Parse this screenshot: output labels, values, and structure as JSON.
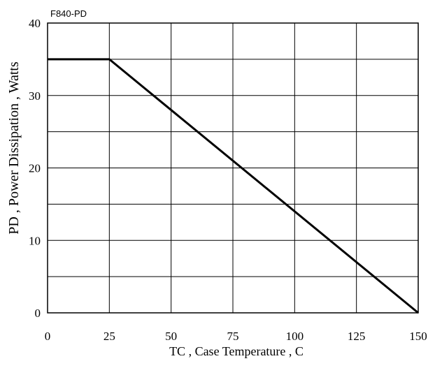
{
  "chart_data": {
    "type": "line",
    "title": "F840-PD",
    "xlabel": "TC , Case Temperature , C",
    "ylabel": "PD , Power Dissipation ,  Watts",
    "xlim": [
      0,
      150
    ],
    "ylim": [
      0,
      40
    ],
    "x_ticks": [
      0,
      25,
      50,
      75,
      100,
      125,
      150
    ],
    "y_ticks": [
      0,
      10,
      20,
      30,
      40
    ],
    "x_ticks_labels": [
      "0",
      "25",
      "50",
      "75",
      "100",
      "125",
      "150"
    ],
    "y_ticks_labels": [
      "0",
      "10",
      "20",
      "30",
      "40"
    ],
    "grid": true,
    "series": [
      {
        "x": [
          0,
          25,
          150
        ],
        "y": [
          35,
          35,
          0
        ],
        "color": "#000000"
      }
    ]
  }
}
